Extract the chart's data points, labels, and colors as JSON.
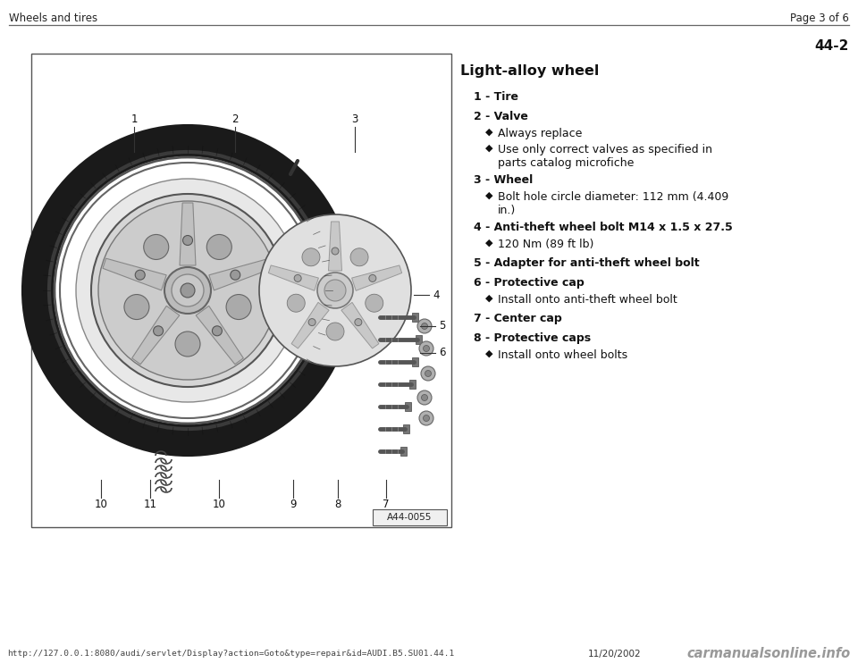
{
  "bg_color": "#ffffff",
  "page_title_left": "Wheels and tires",
  "page_title_right": "Page 3 of 6",
  "section_number": "44-2",
  "section_title": "Light-alloy wheel",
  "items": [
    {
      "number": "1",
      "text": "Tire",
      "sub_items": []
    },
    {
      "number": "2",
      "text": "Valve",
      "sub_items": [
        [
          "Always replace"
        ],
        [
          "Use only correct valves as specified in",
          "parts catalog microfiche"
        ]
      ]
    },
    {
      "number": "3",
      "text": "Wheel",
      "sub_items": [
        [
          "Bolt hole circle diameter: 112 mm (4.409",
          "in.)"
        ]
      ]
    },
    {
      "number": "4",
      "text": "Anti-theft wheel bolt M14 x 1.5 x 27.5",
      "sub_items": [
        [
          "120 Nm (89 ft lb)"
        ]
      ]
    },
    {
      "number": "5",
      "text": "Adapter for anti-theft wheel bolt",
      "sub_items": []
    },
    {
      "number": "6",
      "text": "Protective cap",
      "sub_items": [
        [
          "Install onto anti-theft wheel bolt"
        ]
      ]
    },
    {
      "number": "7",
      "text": "Center cap",
      "sub_items": []
    },
    {
      "number": "8",
      "text": "Protective caps",
      "sub_items": [
        [
          "Install onto wheel bolts"
        ]
      ]
    }
  ],
  "footer_url": "http://127.0.0.1:8080/audi/servlet/Display?action=Goto&type=repair&id=AUDI.B5.SU01.44.1",
  "footer_date": "11/20/2002",
  "footer_logo": "carmanualsonline.info",
  "image_label": "A44-0055"
}
